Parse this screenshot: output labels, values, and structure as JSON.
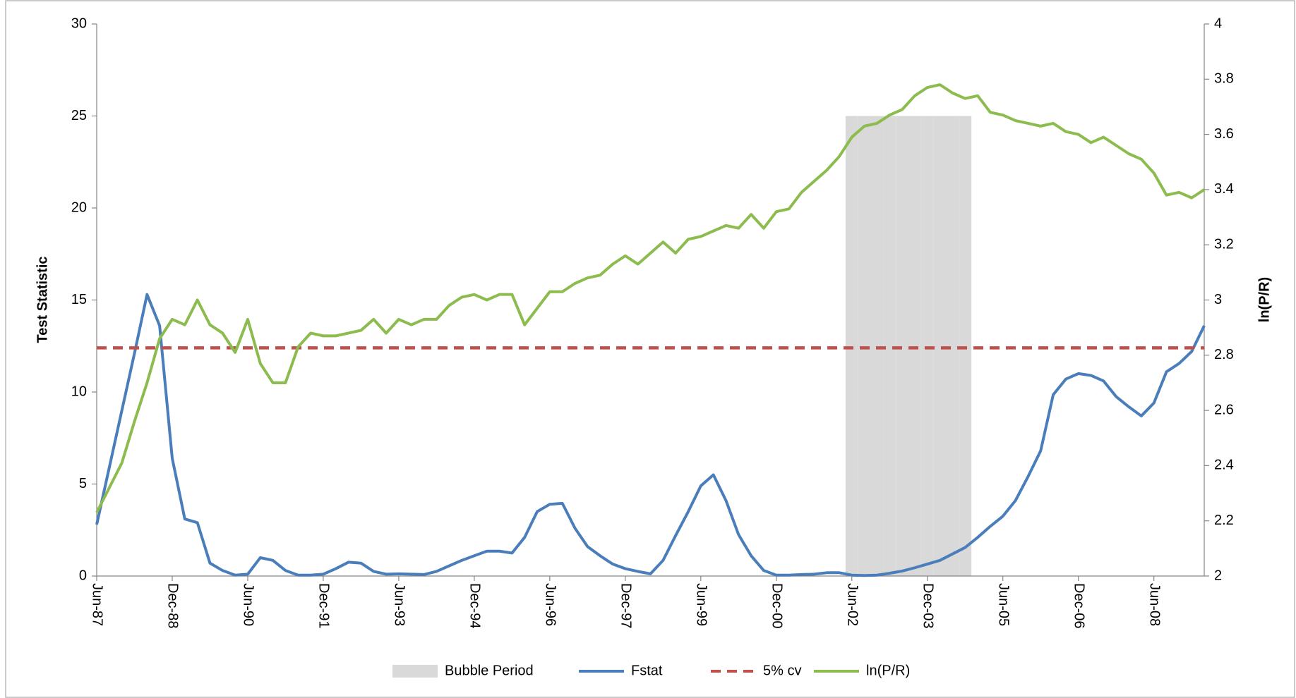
{
  "chart_data": {
    "type": "line",
    "categories": [
      "Jun-87",
      null,
      null,
      null,
      null,
      null,
      "Dec-88",
      null,
      null,
      null,
      null,
      null,
      "Jun-90",
      null,
      null,
      null,
      null,
      null,
      "Dec-91",
      null,
      null,
      null,
      null,
      null,
      "Jun-93",
      null,
      null,
      null,
      null,
      null,
      "Dec-94",
      null,
      null,
      null,
      null,
      null,
      "Jun-96",
      null,
      null,
      null,
      null,
      null,
      "Dec-97",
      null,
      null,
      null,
      null,
      null,
      "Jun-99",
      null,
      null,
      null,
      null,
      null,
      "Dec-00",
      null,
      null,
      null,
      null,
      null,
      "Jun-02",
      null,
      null,
      null,
      null,
      null,
      "Dec-03",
      null,
      null,
      null,
      null,
      null,
      "Jun-05",
      null,
      null,
      null,
      null,
      null,
      "Dec-06",
      null,
      null,
      null,
      null,
      null,
      "Jun-08",
      null,
      null,
      null,
      null
    ],
    "ylabel": "Test Statistic",
    "y2label": "ln(P/R)",
    "ylim": [
      0,
      30
    ],
    "yticks": [
      0,
      5,
      10,
      15,
      20,
      25,
      30
    ],
    "y2lim": [
      2,
      4
    ],
    "y2ticks": [
      2,
      2.2,
      2.4,
      2.6,
      2.8,
      3,
      3.2,
      3.4,
      3.6,
      3.8,
      4
    ],
    "series": [
      {
        "name": "Bubble Period",
        "type": "bar",
        "color": "#d9d9d9",
        "values": [
          null,
          null,
          null,
          null,
          null,
          null,
          null,
          null,
          null,
          null,
          null,
          null,
          null,
          null,
          null,
          null,
          null,
          null,
          null,
          null,
          null,
          null,
          null,
          null,
          null,
          null,
          null,
          null,
          null,
          null,
          null,
          null,
          null,
          null,
          null,
          null,
          null,
          null,
          null,
          null,
          null,
          null,
          null,
          null,
          null,
          null,
          null,
          null,
          null,
          null,
          null,
          null,
          null,
          null,
          null,
          null,
          null,
          null,
          null,
          null,
          25,
          25,
          25,
          25,
          25,
          25,
          25,
          25,
          25,
          25,
          null,
          null,
          null,
          null,
          null,
          null,
          null,
          null,
          null,
          null,
          null,
          null,
          null,
          null,
          null,
          null,
          null,
          null,
          null
        ]
      },
      {
        "name": "Fstat",
        "type": "line",
        "color": "#4a7ebb",
        "style": "solid",
        "values": [
          2.8,
          5.9,
          9.0,
          12.1,
          15.3,
          13.6,
          6.4,
          3.1,
          2.9,
          0.7,
          0.3,
          0.05,
          0.1,
          1.0,
          0.85,
          0.3,
          0.05,
          0.05,
          0.1,
          0.4,
          0.75,
          0.7,
          0.25,
          0.1,
          0.12,
          0.1,
          0.08,
          0.25,
          0.55,
          0.85,
          1.1,
          1.35,
          1.35,
          1.25,
          2.1,
          3.5,
          3.9,
          3.95,
          2.6,
          1.6,
          1.1,
          0.65,
          0.4,
          0.25,
          0.12,
          0.85,
          2.2,
          3.5,
          4.9,
          5.5,
          4.1,
          2.25,
          1.1,
          0.3,
          0.05,
          0.05,
          0.08,
          0.1,
          0.18,
          0.18,
          0.05,
          0.03,
          0.05,
          0.15,
          0.27,
          0.45,
          0.65,
          0.85,
          1.2,
          1.55,
          2.1,
          2.7,
          3.25,
          4.1,
          5.4,
          6.8,
          9.85,
          10.7,
          11.0,
          10.9,
          10.6,
          9.75,
          9.2,
          8.7,
          9.4,
          11.1,
          11.55,
          12.2,
          13.6
        ]
      },
      {
        "name": "5% cv",
        "type": "line",
        "color": "#c0504d",
        "style": "dashed",
        "values": [
          12.4,
          12.4,
          12.4,
          12.4,
          12.4,
          12.4,
          12.4,
          12.4,
          12.4,
          12.4,
          12.4,
          12.4,
          12.4,
          12.4,
          12.4,
          12.4,
          12.4,
          12.4,
          12.4,
          12.4,
          12.4,
          12.4,
          12.4,
          12.4,
          12.4,
          12.4,
          12.4,
          12.4,
          12.4,
          12.4,
          12.4,
          12.4,
          12.4,
          12.4,
          12.4,
          12.4,
          12.4,
          12.4,
          12.4,
          12.4,
          12.4,
          12.4,
          12.4,
          12.4,
          12.4,
          12.4,
          12.4,
          12.4,
          12.4,
          12.4,
          12.4,
          12.4,
          12.4,
          12.4,
          12.4,
          12.4,
          12.4,
          12.4,
          12.4,
          12.4,
          12.4,
          12.4,
          12.4,
          12.4,
          12.4,
          12.4,
          12.4,
          12.4,
          12.4,
          12.4,
          12.4,
          12.4,
          12.4,
          12.4,
          12.4,
          12.4,
          12.4,
          12.4,
          12.4,
          12.4,
          12.4,
          12.4,
          12.4,
          12.4,
          12.4,
          12.4,
          12.4,
          12.4,
          12.4
        ]
      },
      {
        "name": "ln(P/R)",
        "type": "line",
        "color": "#8cbb4e",
        "style": "solid",
        "axis": "y2",
        "values": [
          2.23,
          2.32,
          2.41,
          2.56,
          2.7,
          2.86,
          2.93,
          2.91,
          3.0,
          2.91,
          2.88,
          2.81,
          2.93,
          2.77,
          2.7,
          2.7,
          2.83,
          2.88,
          2.87,
          2.87,
          2.88,
          2.89,
          2.93,
          2.88,
          2.93,
          2.91,
          2.93,
          2.93,
          2.98,
          3.01,
          3.02,
          3.0,
          3.02,
          3.02,
          2.91,
          2.97,
          3.03,
          3.03,
          3.06,
          3.08,
          3.09,
          3.13,
          3.16,
          3.13,
          3.17,
          3.21,
          3.17,
          3.22,
          3.23,
          3.25,
          3.27,
          3.26,
          3.31,
          3.26,
          3.32,
          3.33,
          3.39,
          3.43,
          3.47,
          3.52,
          3.59,
          3.63,
          3.64,
          3.67,
          3.69,
          3.74,
          3.77,
          3.78,
          3.75,
          3.73,
          3.74,
          3.68,
          3.67,
          3.65,
          3.64,
          3.63,
          3.64,
          3.61,
          3.6,
          3.57,
          3.59,
          3.56,
          3.53,
          3.51,
          3.46,
          3.38,
          3.39,
          3.37,
          3.4
        ]
      }
    ],
    "legend": "bottom"
  }
}
